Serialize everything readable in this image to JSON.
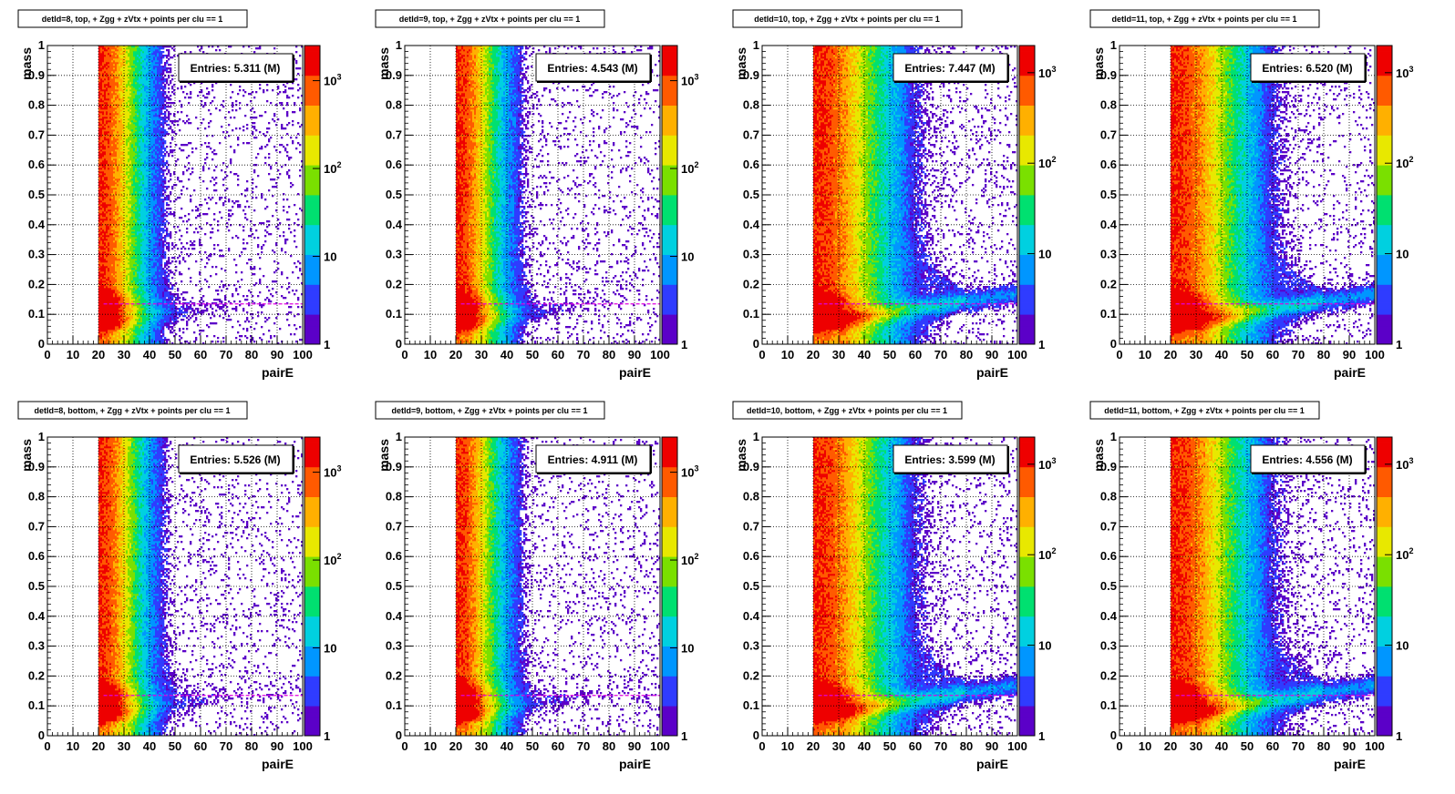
{
  "chart_data": [
    {
      "type": "heatmap",
      "title": "detId=8, top, + Zgg + zVtx + points per clu == 1",
      "xlabel": "pairE",
      "ylabel": "mass",
      "xlim": [
        0,
        100
      ],
      "ylim": [
        0,
        1
      ],
      "x_ticks": [
        "0",
        "10",
        "20",
        "30",
        "40",
        "50",
        "60",
        "70",
        "80",
        "90",
        "100"
      ],
      "y_ticks": [
        "0",
        "0.1",
        "0.2",
        "0.3",
        "0.4",
        "0.5",
        "0.6",
        "0.7",
        "0.8",
        "0.9",
        "1"
      ],
      "z_scale": "log",
      "z_ticks": [
        "1",
        "10",
        "10^2",
        "10^3"
      ],
      "stats": "Entries: 5.311 (M)",
      "ref_line_mass": 0.135,
      "grid": true,
      "density": "low"
    },
    {
      "type": "heatmap",
      "title": "detId=9, top, + Zgg + zVtx + points per clu == 1",
      "xlabel": "pairE",
      "ylabel": "mass",
      "xlim": [
        0,
        100
      ],
      "ylim": [
        0,
        1
      ],
      "x_ticks": [
        "0",
        "10",
        "20",
        "30",
        "40",
        "50",
        "60",
        "70",
        "80",
        "90",
        "100"
      ],
      "y_ticks": [
        "0",
        "0.1",
        "0.2",
        "0.3",
        "0.4",
        "0.5",
        "0.6",
        "0.7",
        "0.8",
        "0.9",
        "1"
      ],
      "z_scale": "log",
      "z_ticks": [
        "1",
        "10",
        "10^2",
        "10^3"
      ],
      "stats": "Entries: 4.543 (M)",
      "ref_line_mass": 0.135,
      "grid": true,
      "density": "low"
    },
    {
      "type": "heatmap",
      "title": "detId=10, top, + Zgg + zVtx + points per clu == 1",
      "xlabel": "pairE",
      "ylabel": "mass",
      "xlim": [
        0,
        100
      ],
      "ylim": [
        0,
        1
      ],
      "x_ticks": [
        "0",
        "10",
        "20",
        "30",
        "40",
        "50",
        "60",
        "70",
        "80",
        "90",
        "100"
      ],
      "y_ticks": [
        "0",
        "0.1",
        "0.2",
        "0.3",
        "0.4",
        "0.5",
        "0.6",
        "0.7",
        "0.8",
        "0.9",
        "1"
      ],
      "z_scale": "log",
      "z_ticks": [
        "1",
        "10",
        "10^2",
        "10^3"
      ],
      "stats": "Entries: 7.447 (M)",
      "ref_line_mass": 0.135,
      "grid": true,
      "density": "high"
    },
    {
      "type": "heatmap",
      "title": "detId=11, top, + Zgg + zVtx + points per clu == 1",
      "xlabel": "pairE",
      "ylabel": "mass",
      "xlim": [
        0,
        100
      ],
      "ylim": [
        0,
        1
      ],
      "x_ticks": [
        "0",
        "10",
        "20",
        "30",
        "40",
        "50",
        "60",
        "70",
        "80",
        "90",
        "100"
      ],
      "y_ticks": [
        "0",
        "0.1",
        "0.2",
        "0.3",
        "0.4",
        "0.5",
        "0.6",
        "0.7",
        "0.8",
        "0.9",
        "1"
      ],
      "z_scale": "log",
      "z_ticks": [
        "1",
        "10",
        "10^2",
        "10^3"
      ],
      "stats": "Entries: 6.520 (M)",
      "ref_line_mass": 0.135,
      "grid": true,
      "density": "high"
    },
    {
      "type": "heatmap",
      "title": "detId=8, bottom, + Zgg + zVtx + points per clu == 1",
      "xlabel": "pairE",
      "ylabel": "mass",
      "xlim": [
        0,
        100
      ],
      "ylim": [
        0,
        1
      ],
      "x_ticks": [
        "0",
        "10",
        "20",
        "30",
        "40",
        "50",
        "60",
        "70",
        "80",
        "90",
        "100"
      ],
      "y_ticks": [
        "0",
        "0.1",
        "0.2",
        "0.3",
        "0.4",
        "0.5",
        "0.6",
        "0.7",
        "0.8",
        "0.9",
        "1"
      ],
      "z_scale": "log",
      "z_ticks": [
        "1",
        "10",
        "10^2",
        "10^3"
      ],
      "stats": "Entries: 5.526 (M)",
      "ref_line_mass": 0.135,
      "grid": true,
      "density": "low"
    },
    {
      "type": "heatmap",
      "title": "detId=9, bottom, + Zgg + zVtx + points per clu == 1",
      "xlabel": "pairE",
      "ylabel": "mass",
      "xlim": [
        0,
        100
      ],
      "ylim": [
        0,
        1
      ],
      "x_ticks": [
        "0",
        "10",
        "20",
        "30",
        "40",
        "50",
        "60",
        "70",
        "80",
        "90",
        "100"
      ],
      "y_ticks": [
        "0",
        "0.1",
        "0.2",
        "0.3",
        "0.4",
        "0.5",
        "0.6",
        "0.7",
        "0.8",
        "0.9",
        "1"
      ],
      "z_scale": "log",
      "z_ticks": [
        "1",
        "10",
        "10^2",
        "10^3"
      ],
      "stats": "Entries: 4.911 (M)",
      "ref_line_mass": 0.135,
      "grid": true,
      "density": "low"
    },
    {
      "type": "heatmap",
      "title": "detId=10, bottom, + Zgg + zVtx + points per clu == 1",
      "xlabel": "pairE",
      "ylabel": "mass",
      "xlim": [
        0,
        100
      ],
      "ylim": [
        0,
        1
      ],
      "x_ticks": [
        "0",
        "10",
        "20",
        "30",
        "40",
        "50",
        "60",
        "70",
        "80",
        "90",
        "100"
      ],
      "y_ticks": [
        "0",
        "0.1",
        "0.2",
        "0.3",
        "0.4",
        "0.5",
        "0.6",
        "0.7",
        "0.8",
        "0.9",
        "1"
      ],
      "z_scale": "log",
      "z_ticks": [
        "1",
        "10",
        "10^2",
        "10^3"
      ],
      "stats": "Entries: 3.599 (M)",
      "ref_line_mass": 0.135,
      "grid": true,
      "density": "high"
    },
    {
      "type": "heatmap",
      "title": "detId=11, bottom, + Zgg + zVtx + points per clu == 1",
      "xlabel": "pairE",
      "ylabel": "mass",
      "xlim": [
        0,
        100
      ],
      "ylim": [
        0,
        1
      ],
      "x_ticks": [
        "0",
        "10",
        "20",
        "30",
        "40",
        "50",
        "60",
        "70",
        "80",
        "90",
        "100"
      ],
      "y_ticks": [
        "0",
        "0.1",
        "0.2",
        "0.3",
        "0.4",
        "0.5",
        "0.6",
        "0.7",
        "0.8",
        "0.9",
        "1"
      ],
      "z_scale": "log",
      "z_ticks": [
        "1",
        "10",
        "10^2",
        "10^3"
      ],
      "stats": "Entries: 4.556 (M)",
      "ref_line_mass": 0.135,
      "grid": true,
      "density": "high"
    }
  ],
  "colors": {
    "palette": [
      "#5b00c8",
      "#2f3cff",
      "#0096ff",
      "#00d0e0",
      "#00e070",
      "#7ae000",
      "#e8e800",
      "#ffb000",
      "#ff5a00",
      "#ee0000"
    ],
    "ref_line": "#e000e0",
    "grid": "#000000"
  }
}
